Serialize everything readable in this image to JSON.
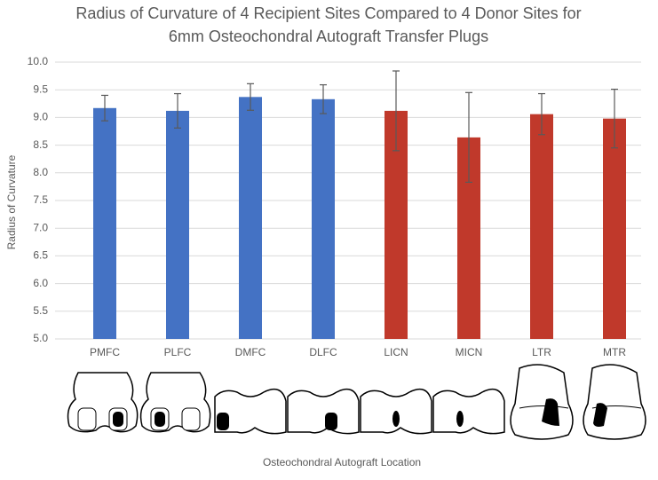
{
  "chart_data": {
    "type": "bar",
    "title": [
      "Radius of Curvature of 4 Recipient Sites Compared to 4 Donor Sites for",
      "6mm Osteochondral Autograft Transfer Plugs"
    ],
    "y_label": "Radius of Curvature",
    "x_label": "Osteochondral Autograft Location",
    "categories": [
      "PMFC",
      "PLFC",
      "DMFC",
      "DLFC",
      "LICN",
      "MICN",
      "LTR",
      "MTR"
    ],
    "values": [
      9.17,
      9.12,
      9.37,
      9.33,
      9.12,
      8.64,
      9.06,
      8.98
    ],
    "errors": [
      0.23,
      0.31,
      0.24,
      0.26,
      0.72,
      0.81,
      0.37,
      0.53
    ],
    "colors": [
      "#4472c4",
      "#4472c4",
      "#4472c4",
      "#4472c4",
      "#c0392b",
      "#c0392b",
      "#c0392b",
      "#c0392b"
    ],
    "ylim": [
      5,
      10
    ],
    "yticks": [
      {
        "value": 10,
        "label": "10.0"
      },
      9.5,
      {
        "value": 9,
        "label": "9.0"
      },
      8.5,
      {
        "value": 8,
        "label": "8.0"
      },
      7.5,
      {
        "value": 7,
        "label": "7.0"
      },
      6.5,
      {
        "value": 6,
        "label": "6.0"
      },
      5.5,
      {
        "value": 5,
        "label": "5.0"
      }
    ],
    "grid": true
  }
}
